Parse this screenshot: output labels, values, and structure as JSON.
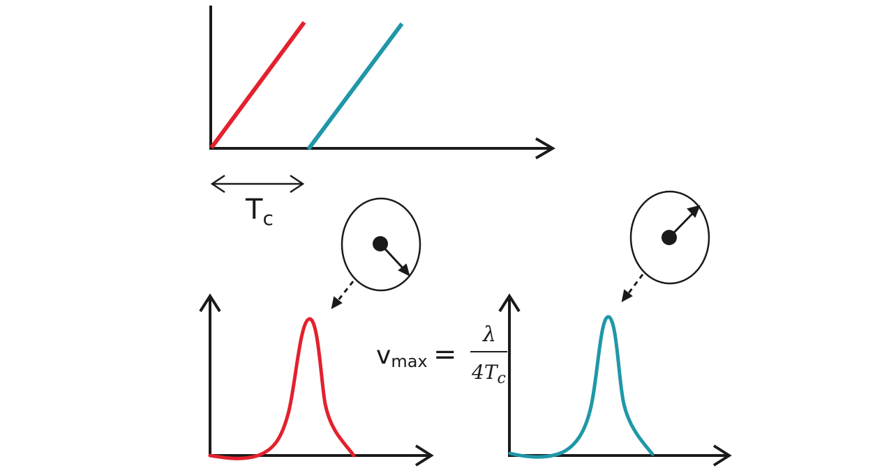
{
  "colors": {
    "red": "#e3212d",
    "teal": "#1f97a8",
    "black": "#1a1a1a"
  },
  "labels": {
    "tc_main": "T",
    "tc_sub": "c",
    "v_main": "v",
    "v_sub": "max",
    "equals": "=",
    "numerator": "λ",
    "denominator": "4T",
    "denominator_sub": "c"
  }
}
